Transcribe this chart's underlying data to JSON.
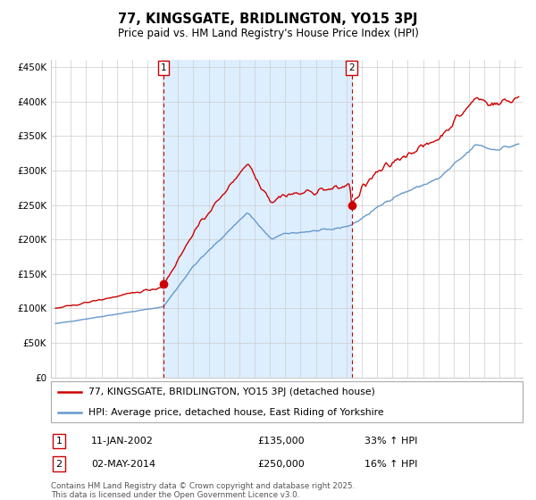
{
  "title": "77, KINGSGATE, BRIDLINGTON, YO15 3PJ",
  "subtitle": "Price paid vs. HM Land Registry's House Price Index (HPI)",
  "ylabel_ticks": [
    "£0",
    "£50K",
    "£100K",
    "£150K",
    "£200K",
    "£250K",
    "£300K",
    "£350K",
    "£400K",
    "£450K"
  ],
  "ytick_vals": [
    0,
    50000,
    100000,
    150000,
    200000,
    250000,
    300000,
    350000,
    400000,
    450000
  ],
  "ylim": [
    0,
    460000
  ],
  "xlim_start": 1994.7,
  "xlim_end": 2025.5,
  "vline1_x": 2002.04,
  "vline2_x": 2014.33,
  "marker1_x": 2002.04,
  "marker1_y": 135000,
  "marker2_x": 2014.33,
  "marker2_y": 250000,
  "legend_line1": "77, KINGSGATE, BRIDLINGTON, YO15 3PJ (detached house)",
  "legend_line2": "HPI: Average price, detached house, East Riding of Yorkshire",
  "footnote1": "Contains HM Land Registry data © Crown copyright and database right 2025.",
  "footnote2": "This data is licensed under the Open Government Licence v3.0.",
  "red_color": "#cc0000",
  "blue_color": "#6699cc",
  "bg_fill_color": "#ddeeff",
  "grid_color": "#cccccc",
  "marker_color": "#cc0000",
  "fig_bg": "#ffffff"
}
